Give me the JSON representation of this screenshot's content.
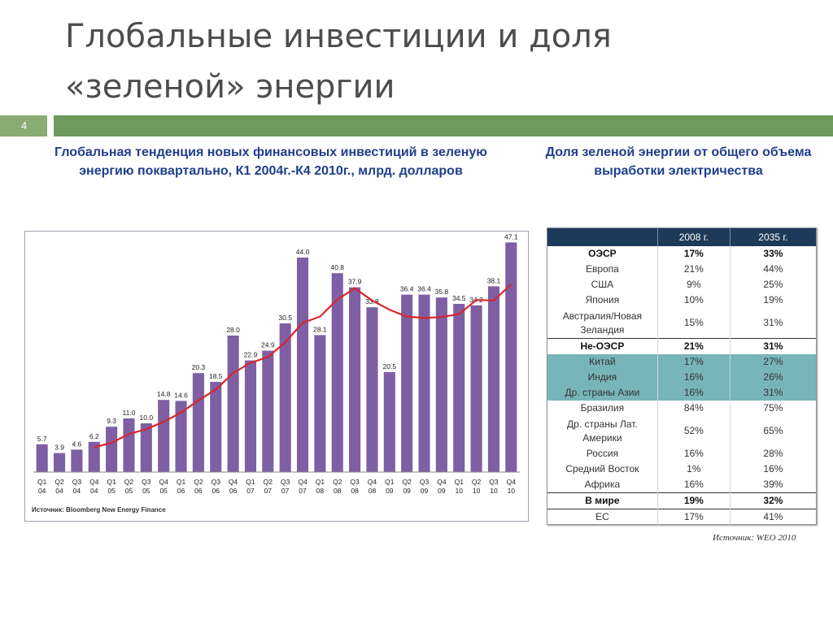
{
  "slide": {
    "title": "Глобальные инвестиции и доля «зеленой» энергии",
    "page_number": "4",
    "accent_color": "#6e9a5e"
  },
  "chart_heading": "Глобальная тенденция новых финансовых инвестиций в зеленую энергию поквартально, К1 2004г.-К4 2010г., млрд. долларов",
  "table_heading": "Доля зеленой энергии от общего объема выработки электричества",
  "chart_data": {
    "type": "bar",
    "bar_color": "#7e5fa3",
    "line_color": "#d9262c",
    "categories": [
      [
        "Q1",
        "04"
      ],
      [
        "Q2",
        "04"
      ],
      [
        "Q3",
        "04"
      ],
      [
        "Q4",
        "04"
      ],
      [
        "Q1",
        "05"
      ],
      [
        "Q2",
        "05"
      ],
      [
        "Q3",
        "05"
      ],
      [
        "Q4",
        "05"
      ],
      [
        "Q1",
        "06"
      ],
      [
        "Q2",
        "06"
      ],
      [
        "Q3",
        "06"
      ],
      [
        "Q4",
        "06"
      ],
      [
        "Q1",
        "07"
      ],
      [
        "Q2",
        "07"
      ],
      [
        "Q3",
        "07"
      ],
      [
        "Q4",
        "07"
      ],
      [
        "Q1",
        "08"
      ],
      [
        "Q2",
        "08"
      ],
      [
        "Q3",
        "08"
      ],
      [
        "Q4",
        "08"
      ],
      [
        "Q1",
        "09"
      ],
      [
        "Q2",
        "09"
      ],
      [
        "Q3",
        "09"
      ],
      [
        "Q4",
        "09"
      ],
      [
        "Q1",
        "10"
      ],
      [
        "Q2",
        "10"
      ],
      [
        "Q3",
        "10"
      ],
      [
        "Q4",
        "10"
      ]
    ],
    "values": [
      5.7,
      3.9,
      4.6,
      6.2,
      9.3,
      11.0,
      10.0,
      14.8,
      14.6,
      20.3,
      18.5,
      28.0,
      22.9,
      24.9,
      30.5,
      44.0,
      28.1,
      40.8,
      37.9,
      33.8,
      20.5,
      36.4,
      36.4,
      35.8,
      34.5,
      34.2,
      38.1,
      47.1
    ],
    "value_labels": [
      "5.7",
      "3.9",
      "4.6",
      "6.2",
      "9.3",
      "11.0",
      "10.0",
      "14.8",
      "14.6",
      "20.3",
      "18.5",
      "28.0",
      "22.9",
      "24.9",
      "30.5",
      "44.0",
      "28.1",
      "40.8",
      "37.9",
      "33.8",
      "20.5",
      "36.4",
      "36.4",
      "35.8",
      "34.5",
      "34.2",
      "38.1",
      "47.1"
    ],
    "trend_values": [
      null,
      null,
      null,
      5.1,
      6.0,
      7.8,
      8.8,
      10.3,
      12.2,
      14.7,
      16.9,
      20.3,
      22.4,
      23.6,
      26.6,
      30.6,
      31.9,
      35.4,
      37.7,
      35.2,
      33.3,
      31.9,
      31.6,
      31.8,
      32.4,
      35.3,
      35.2,
      38.5
    ],
    "ylim": [
      0,
      48
    ],
    "grid": false,
    "source": "Источник: Bloomberg New Energy Finance"
  },
  "share_table": {
    "columns": [
      "",
      "2008 г.",
      "2035 г."
    ],
    "rows": [
      {
        "label": "ОЭСР",
        "y2008": "17%",
        "y2035": "33%",
        "bold": true
      },
      {
        "label": "Европа",
        "y2008": "21%",
        "y2035": "44%"
      },
      {
        "label": "США",
        "y2008": "9%",
        "y2035": "25%"
      },
      {
        "label": "Япония",
        "y2008": "10%",
        "y2035": "19%"
      },
      {
        "label": "Австралия/Новая Зеландия",
        "y2008": "15%",
        "y2035": "31%",
        "tall": true
      },
      {
        "label": "Не-ОЭСР",
        "y2008": "21%",
        "y2035": "31%",
        "bold": true,
        "topline": true
      },
      {
        "label": "Китай",
        "y2008": "17%",
        "y2035": "27%",
        "highlight": true
      },
      {
        "label": "Индия",
        "y2008": "16%",
        "y2035": "26%",
        "highlight": true
      },
      {
        "label": "Др. страны Азии",
        "y2008": "16%",
        "y2035": "31%",
        "highlight": true
      },
      {
        "label": "Бразилия",
        "y2008": "84%",
        "y2035": "75%"
      },
      {
        "label": "Др. страны Лат. Америки",
        "y2008": "52%",
        "y2035": "65%",
        "tall": true
      },
      {
        "label": "Россия",
        "y2008": "16%",
        "y2035": "28%"
      },
      {
        "label": "Средний Восток",
        "y2008": "1%",
        "y2035": "16%"
      },
      {
        "label": "Африка",
        "y2008": "16%",
        "y2035": "39%"
      },
      {
        "label": "В мире",
        "y2008": "19%",
        "y2035": "32%",
        "bold": true,
        "topline": true
      },
      {
        "label": "ЕС",
        "y2008": "17%",
        "y2035": "41%",
        "topline": true
      }
    ],
    "source": "Источник: WEO 2010",
    "header_color": "#1e3a5a",
    "highlight_color": "#77b5b9"
  }
}
